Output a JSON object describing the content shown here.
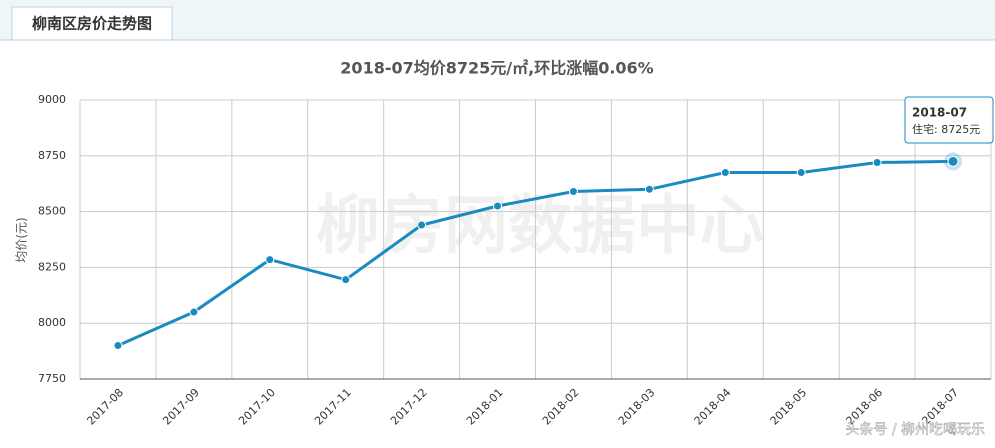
{
  "header": {
    "tab": "柳南区房价走势图"
  },
  "chart_data": {
    "type": "line",
    "title": "2018-07均价8725元/㎡,环比涨幅0.06%",
    "y_label": "均价(元)",
    "watermark": "柳房网数据中心",
    "categories": [
      "2017-08",
      "2017-09",
      "2017-10",
      "2017-11",
      "2017-12",
      "2018-01",
      "2018-02",
      "2018-03",
      "2018-04",
      "2018-05",
      "2018-06",
      "2018-07"
    ],
    "series": [
      {
        "name": "住宅",
        "color": "#1a8bbf",
        "values": [
          7900,
          8050,
          8285,
          8195,
          8440,
          8525,
          8590,
          8600,
          8675,
          8675,
          8720,
          8725
        ]
      }
    ],
    "ylim": [
      7750,
      9000
    ],
    "yticks": [
      7750,
      8000,
      8250,
      8500,
      8750,
      9000
    ],
    "grid": true,
    "tooltip": {
      "title": "2018-07",
      "text": "住宅: 8725元"
    }
  },
  "footer": {
    "source": "头条号 / 柳州吃喝玩乐"
  }
}
